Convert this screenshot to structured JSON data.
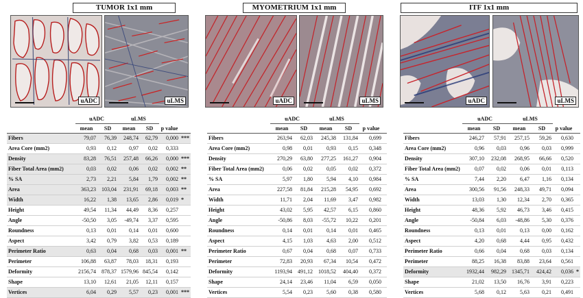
{
  "panels": [
    {
      "title": "TUMOR 1x1 mm",
      "left_label": "uADC",
      "right_label": "uLMS",
      "group_labels": [
        "uADC",
        "uLMS"
      ],
      "columns": [
        "mean",
        "SD",
        "mean",
        "SD",
        "p value"
      ],
      "rows": [
        {
          "label": "Fibers",
          "cells": [
            "79,07",
            "76,39",
            "248,74",
            "62,79",
            "0,000"
          ],
          "sig": "***",
          "shade": true
        },
        {
          "label": "Area Core (mm2)",
          "cells": [
            "0,93",
            "0,12",
            "0,97",
            "0,02",
            "0,333"
          ],
          "sig": "",
          "shade": false
        },
        {
          "label": "Density",
          "cells": [
            "83,28",
            "76,51",
            "257,48",
            "66,26",
            "0,000"
          ],
          "sig": "***",
          "shade": true
        },
        {
          "label": "Fiber Total Area (mm2)",
          "cells": [
            "0,03",
            "0,02",
            "0,06",
            "0,02",
            "0,002"
          ],
          "sig": "**",
          "shade": true
        },
        {
          "label": "% SA",
          "cells": [
            "2,73",
            "2,21",
            "5,84",
            "1,79",
            "0,002"
          ],
          "sig": "**",
          "shade": true
        },
        {
          "label": "Area",
          "cells": [
            "363,23",
            "103,04",
            "231,91",
            "69,18",
            "0,003"
          ],
          "sig": "**",
          "shade": true
        },
        {
          "label": "Width",
          "cells": [
            "16,22",
            "1,38",
            "13,65",
            "2,86",
            "0,019"
          ],
          "sig": "*",
          "shade": true
        },
        {
          "label": "Height",
          "cells": [
            "49,54",
            "11,34",
            "44,49",
            "8,36",
            "0,257"
          ],
          "sig": "",
          "shade": false
        },
        {
          "label": "Angle",
          "cells": [
            "-50,50",
            "3,05",
            "-49,74",
            "3,37",
            "0,595"
          ],
          "sig": "",
          "shade": false
        },
        {
          "label": "Roundness",
          "cells": [
            "0,13",
            "0,01",
            "0,14",
            "0,01",
            "0,600"
          ],
          "sig": "",
          "shade": false
        },
        {
          "label": "Aspect",
          "cells": [
            "3,42",
            "0,79",
            "3,82",
            "0,53",
            "0,189"
          ],
          "sig": "",
          "shade": false
        },
        {
          "label": "Perimeter Ratio",
          "cells": [
            "0,63",
            "0,04",
            "0,68",
            "0,03",
            "0,001"
          ],
          "sig": "**",
          "shade": true
        },
        {
          "label": "Perimeter",
          "cells": [
            "106,88",
            "63,87",
            "78,03",
            "18,31",
            "0,193"
          ],
          "sig": "",
          "shade": false
        },
        {
          "label": "Deformity",
          "cells": [
            "2156,74",
            "878,37",
            "1579,96",
            "845,54",
            "0,142"
          ],
          "sig": "",
          "shade": false
        },
        {
          "label": "Shape",
          "cells": [
            "13,10",
            "12,61",
            "21,05",
            "12,11",
            "0,157"
          ],
          "sig": "",
          "shade": false
        },
        {
          "label": "Vertices",
          "cells": [
            "6,04",
            "0,29",
            "5,57",
            "0,23",
            "0,001"
          ],
          "sig": "***",
          "shade": true
        },
        {
          "label": "Fractal Dimension",
          "cells": [
            "1,45",
            "0,04",
            "1,40",
            "0,02",
            "0,004"
          ],
          "sig": "**",
          "shade": true
        }
      ]
    },
    {
      "title": "MYOMETRIUM 1x1 mm",
      "left_label": "uADC",
      "right_label": "uLMS",
      "group_labels": [
        "uADC",
        "uLMS"
      ],
      "columns": [
        "mean",
        "SD",
        "mean",
        "SD",
        "p value"
      ],
      "rows": [
        {
          "label": "Fibers",
          "cells": [
            "263,94",
            "62,03",
            "245,38",
            "131,84",
            "0,699"
          ],
          "sig": "",
          "shade": false
        },
        {
          "label": "Area Core (mm2)",
          "cells": [
            "0,98",
            "0,01",
            "0,93",
            "0,15",
            "0,348"
          ],
          "sig": "",
          "shade": false
        },
        {
          "label": "Density",
          "cells": [
            "270,29",
            "63,80",
            "277,25",
            "161,27",
            "0,904"
          ],
          "sig": "",
          "shade": false
        },
        {
          "label": "Fiber Total Area (mm2)",
          "cells": [
            "0,06",
            "0,02",
            "0,05",
            "0,02",
            "0,372"
          ],
          "sig": "",
          "shade": false
        },
        {
          "label": "% SA",
          "cells": [
            "5,97",
            "1,80",
            "5,94",
            "4,10",
            "0,984"
          ],
          "sig": "",
          "shade": false
        },
        {
          "label": "Area",
          "cells": [
            "227,58",
            "81,84",
            "215,28",
            "54,95",
            "0,692"
          ],
          "sig": "",
          "shade": false
        },
        {
          "label": "Width",
          "cells": [
            "11,71",
            "2,04",
            "11,69",
            "3,47",
            "0,982"
          ],
          "sig": "",
          "shade": false
        },
        {
          "label": "Height",
          "cells": [
            "43,02",
            "5,95",
            "42,57",
            "6,15",
            "0,860"
          ],
          "sig": "",
          "shade": false
        },
        {
          "label": "Angle",
          "cells": [
            "-50,86",
            "8,03",
            "-55,72",
            "10,22",
            "0,201"
          ],
          "sig": "",
          "shade": false
        },
        {
          "label": "Roundness",
          "cells": [
            "0,14",
            "0,01",
            "0,14",
            "0,01",
            "0,465"
          ],
          "sig": "",
          "shade": false
        },
        {
          "label": "Aspect",
          "cells": [
            "4,15",
            "1,03",
            "4,63",
            "2,00",
            "0,512"
          ],
          "sig": "",
          "shade": false
        },
        {
          "label": "Perimeter Ratio",
          "cells": [
            "0,67",
            "0,04",
            "0,68",
            "0,07",
            "0,733"
          ],
          "sig": "",
          "shade": false
        },
        {
          "label": "Perimeter",
          "cells": [
            "72,83",
            "20,93",
            "67,34",
            "10,54",
            "0,472"
          ],
          "sig": "",
          "shade": false
        },
        {
          "label": "Deformity",
          "cells": [
            "1193,94",
            "491,12",
            "1018,52",
            "404,40",
            "0,372"
          ],
          "sig": "",
          "shade": false
        },
        {
          "label": "Shape",
          "cells": [
            "24,14",
            "23,46",
            "11,04",
            "6,59",
            "0,050"
          ],
          "sig": "",
          "shade": false
        },
        {
          "label": "Vertices",
          "cells": [
            "5,54",
            "0,23",
            "5,60",
            "0,38",
            "0,580"
          ],
          "sig": "",
          "shade": false
        },
        {
          "label": "Fractal Dimension",
          "cells": [
            "1,39",
            "0,04",
            "1,40",
            "0,06",
            "0,826"
          ],
          "sig": "",
          "shade": false
        }
      ]
    },
    {
      "title": "ITF 1x1 mm",
      "left_label": "uADC",
      "right_label": "uLMS",
      "group_labels": [
        "uADC",
        "uLMS"
      ],
      "columns": [
        "mean",
        "SD",
        "mean",
        "SD",
        "p value"
      ],
      "rows": [
        {
          "label": "Fibers",
          "cells": [
            "246,27",
            "57,91",
            "257,15",
            "59,26",
            "0,630"
          ],
          "sig": "",
          "shade": false
        },
        {
          "label": "Area Core (mm2)",
          "cells": [
            "0,96",
            "0,03",
            "0,96",
            "0,03",
            "0,999"
          ],
          "sig": "",
          "shade": false
        },
        {
          "label": "Density",
          "cells": [
            "307,10",
            "232,08",
            "268,95",
            "66,66",
            "0,520"
          ],
          "sig": "",
          "shade": false
        },
        {
          "label": "Fiber Total Area (mm2)",
          "cells": [
            "0,07",
            "0,02",
            "0,06",
            "0,01",
            "0,113"
          ],
          "sig": "",
          "shade": false
        },
        {
          "label": "% SA",
          "cells": [
            "7,44",
            "2,20",
            "6,47",
            "1,16",
            "0,134"
          ],
          "sig": "",
          "shade": false
        },
        {
          "label": "Area",
          "cells": [
            "300,56",
            "91,56",
            "248,33",
            "49,71",
            "0,094"
          ],
          "sig": "",
          "shade": false
        },
        {
          "label": "Width",
          "cells": [
            "13,03",
            "1,30",
            "12,34",
            "2,70",
            "0,365"
          ],
          "sig": "",
          "shade": false
        },
        {
          "label": "Height",
          "cells": [
            "48,36",
            "5,92",
            "46,73",
            "3,46",
            "0,415"
          ],
          "sig": "",
          "shade": false
        },
        {
          "label": "Angle",
          "cells": [
            "-50,84",
            "6,03",
            "-48,86",
            "5,30",
            "0,376"
          ],
          "sig": "",
          "shade": false
        },
        {
          "label": "Roundness",
          "cells": [
            "0,13",
            "0,01",
            "0,13",
            "0,00",
            "0,162"
          ],
          "sig": "",
          "shade": false
        },
        {
          "label": "Aspect",
          "cells": [
            "4,20",
            "0,68",
            "4,44",
            "0,95",
            "0,432"
          ],
          "sig": "",
          "shade": false
        },
        {
          "label": "Perimeter Ratio",
          "cells": [
            "0,66",
            "0,04",
            "0,68",
            "0,03",
            "0,134"
          ],
          "sig": "",
          "shade": false
        },
        {
          "label": "Perimeter",
          "cells": [
            "88,25",
            "16,38",
            "83,88",
            "23,64",
            "0,561"
          ],
          "sig": "",
          "shade": false
        },
        {
          "label": "Deformity",
          "cells": [
            "1932,44",
            "982,29",
            "1345,71",
            "424,42",
            "0,036"
          ],
          "sig": "*",
          "shade": true
        },
        {
          "label": "Shape",
          "cells": [
            "21,02",
            "13,50",
            "16,76",
            "3,91",
            "0,223"
          ],
          "sig": "",
          "shade": false
        },
        {
          "label": "Vertices",
          "cells": [
            "5,68",
            "0,12",
            "5,63",
            "0,21",
            "0,491"
          ],
          "sig": "",
          "shade": false
        },
        {
          "label": "Fractal Dimension",
          "cells": [
            "1,39",
            "0,02",
            "1,39",
            "0,03",
            "0,610"
          ],
          "sig": "",
          "shade": false
        }
      ]
    }
  ]
}
